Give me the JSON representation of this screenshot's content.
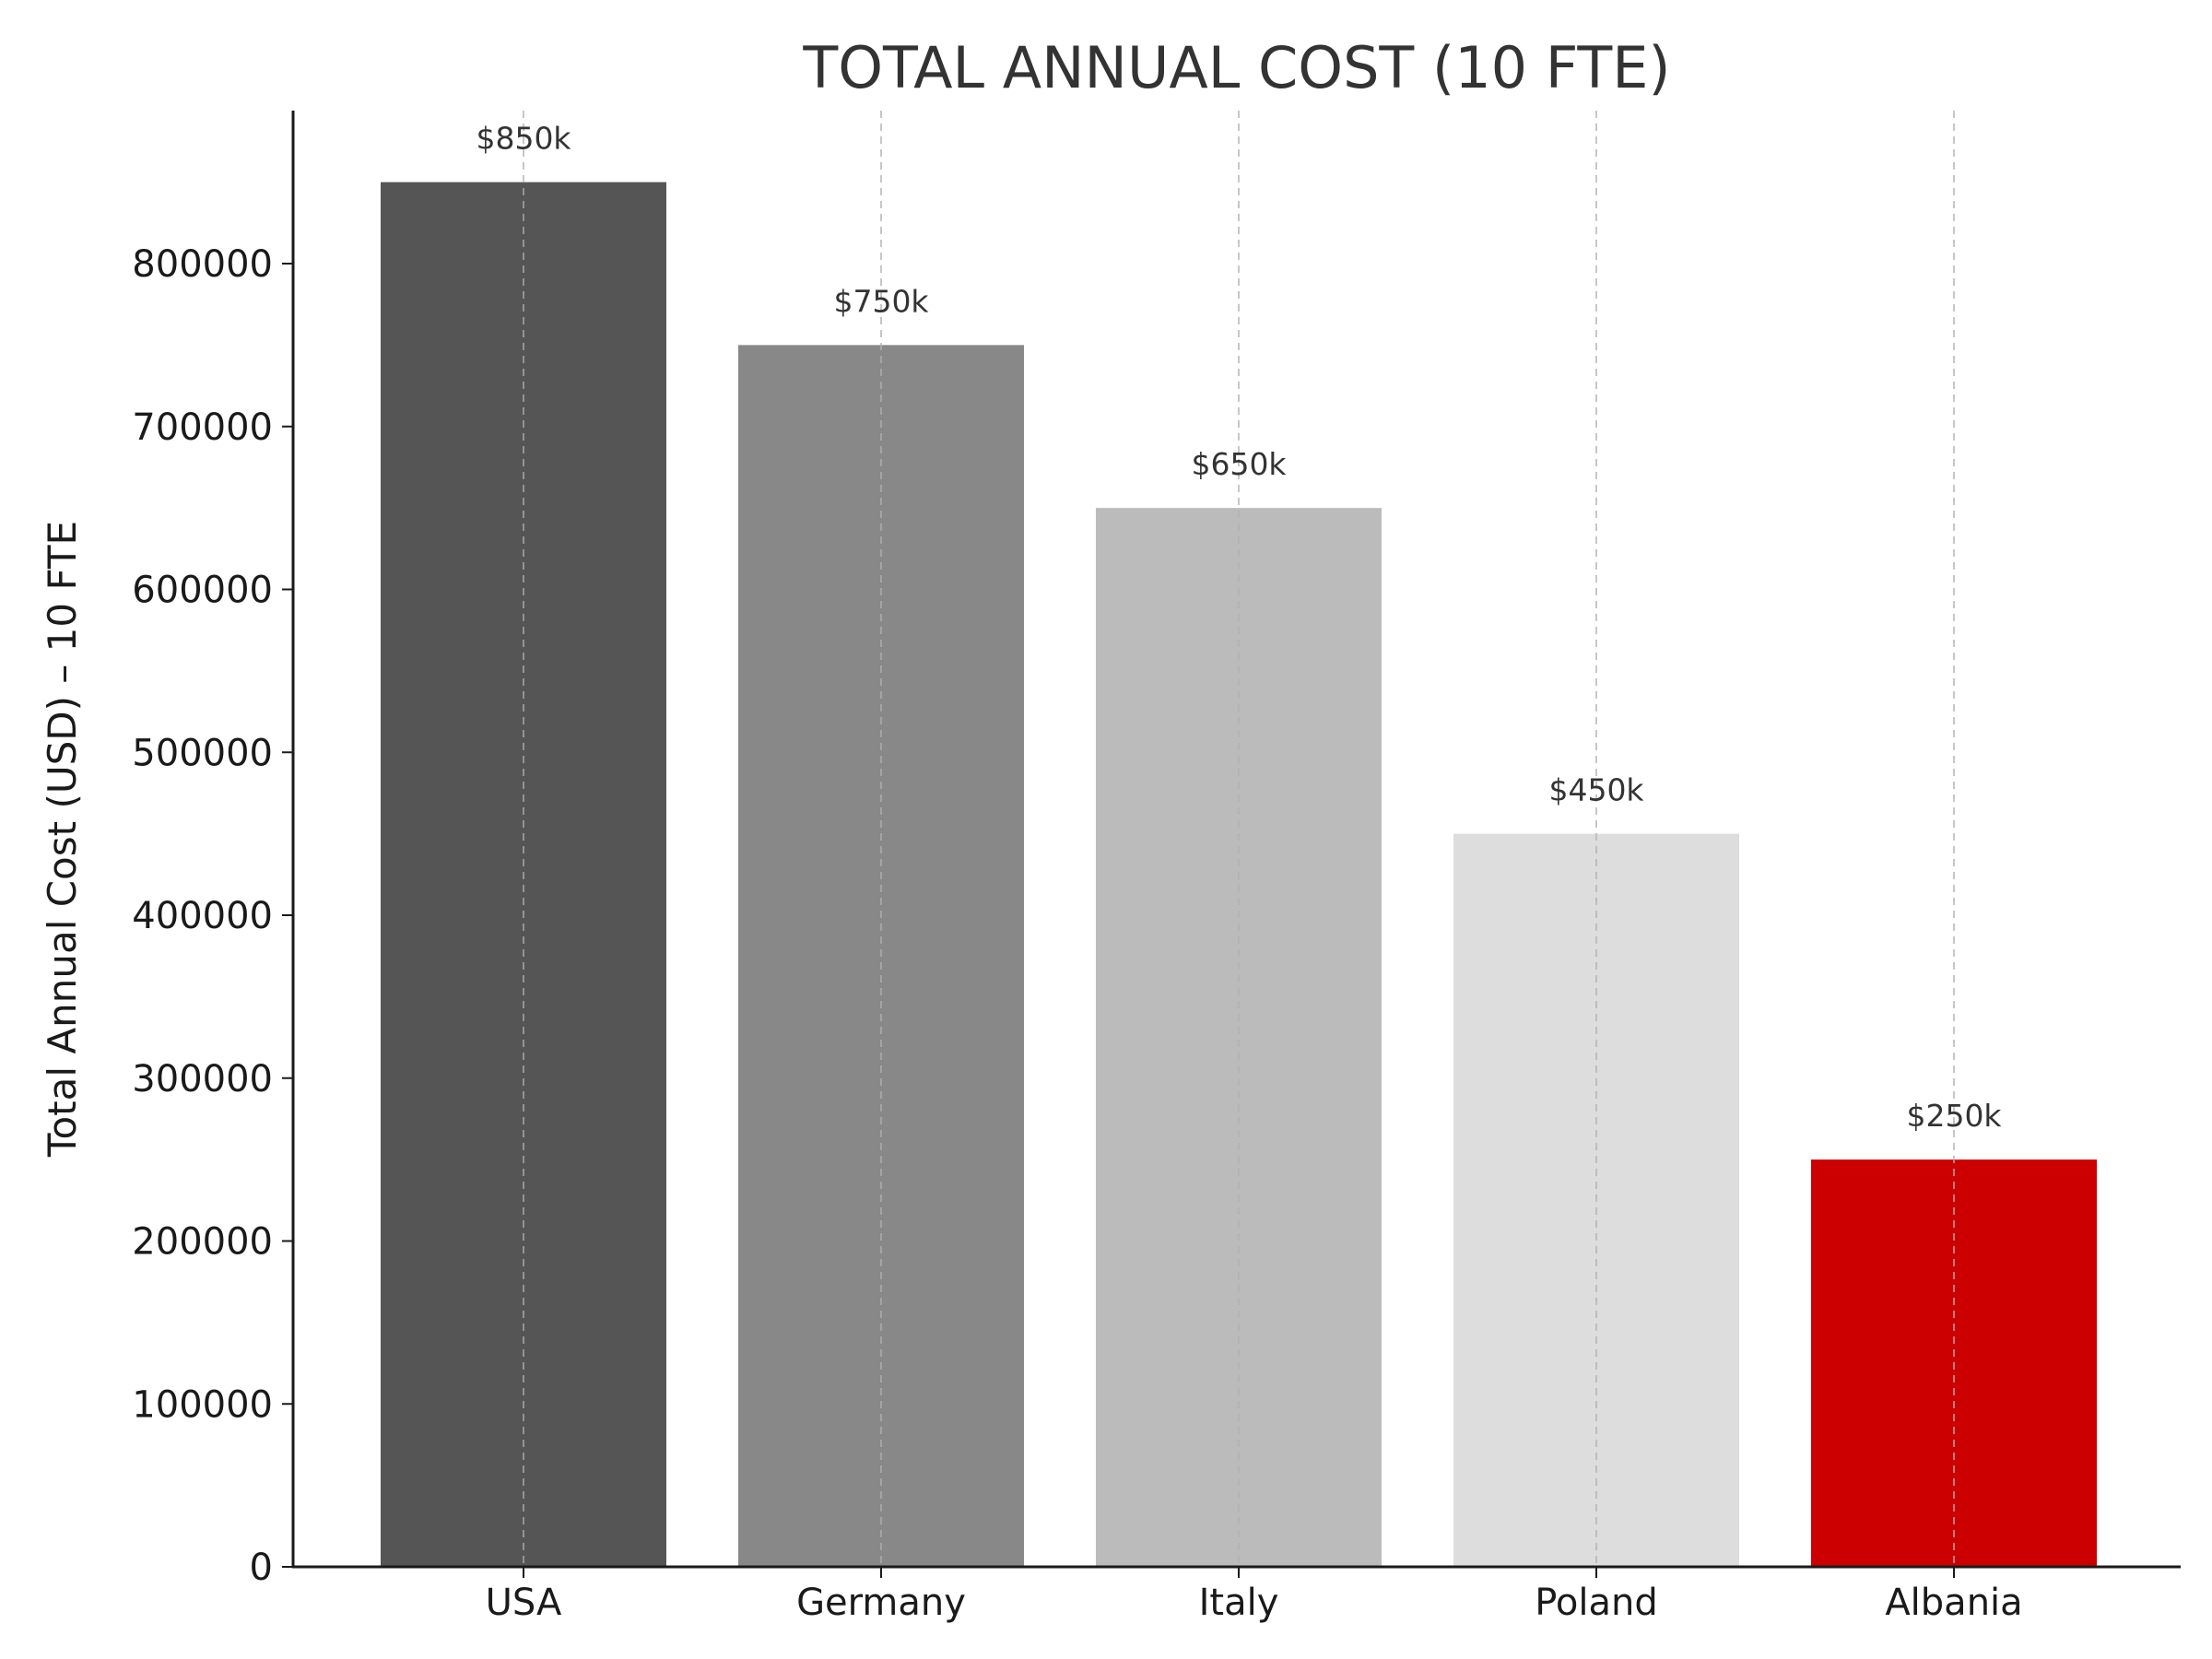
{
  "chart_data": {
    "type": "bar",
    "title": "TOTAL ANNUAL COST (10 FTE)",
    "xlabel": "",
    "ylabel": "Total Annual Cost (USD) – 10 FTE",
    "categories": [
      "USA",
      "Germany",
      "Italy",
      "Poland",
      "Albania"
    ],
    "values": [
      850000,
      750000,
      650000,
      450000,
      250000
    ],
    "data_labels": [
      "$850k",
      "$750k",
      "$650k",
      "$450k",
      "$250k"
    ],
    "colors": [
      "#555555",
      "#888888",
      "#bbbbbb",
      "#dddddd",
      "#cc0000"
    ],
    "ylim": [
      0,
      895000
    ],
    "yticks": [
      0,
      100000,
      200000,
      300000,
      400000,
      500000,
      600000,
      700000,
      800000
    ],
    "grid": "vertical dashed at categories",
    "legend": "none"
  }
}
